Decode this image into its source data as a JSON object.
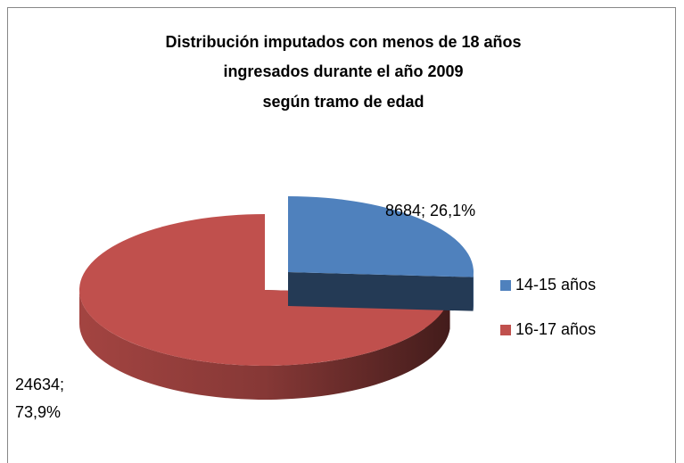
{
  "chart_data": {
    "type": "pie3d",
    "title": [
      "Distribución imputados con menos de 18 años",
      "ingresados durante el año 2009",
      "según tramo de edad"
    ],
    "categories": [
      "14-15 años",
      "16-17 años"
    ],
    "values": [
      8684,
      24634
    ],
    "value_labels": [
      [
        "8684; 26,1%"
      ],
      [
        "24634;",
        "73,9%"
      ]
    ],
    "colors": [
      "#4f81bd",
      "#c0504d"
    ],
    "legend": "right"
  }
}
